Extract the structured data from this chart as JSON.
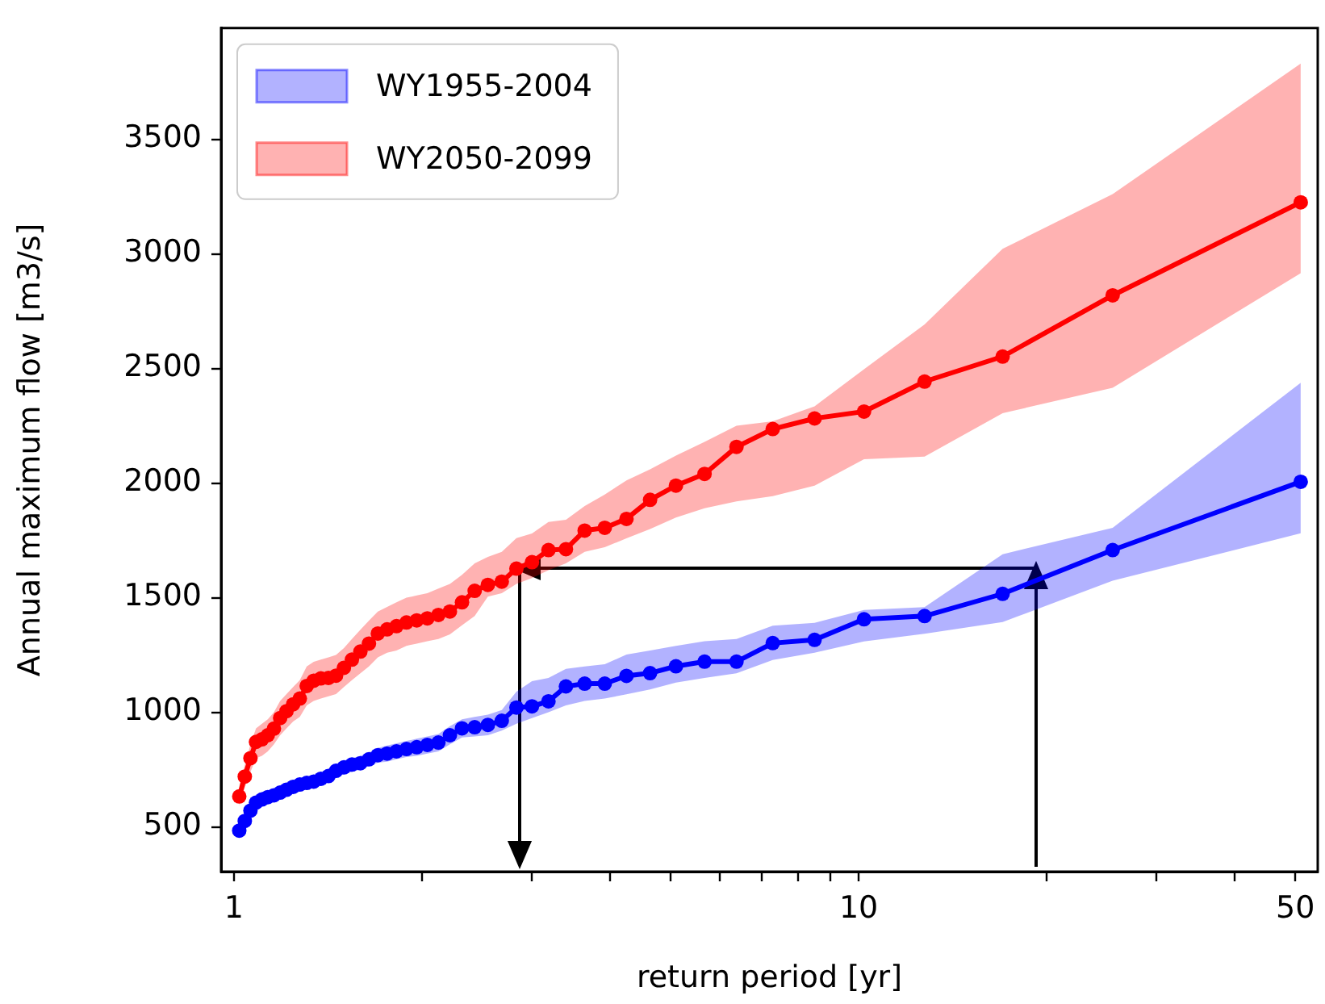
{
  "chart_data": {
    "type": "line",
    "xlabel": "return period [yr]",
    "ylabel": "Annual maximum flow [m3/s]",
    "x": [
      1.02,
      1.041,
      1.063,
      1.085,
      1.109,
      1.133,
      1.159,
      1.186,
      1.214,
      1.244,
      1.275,
      1.308,
      1.342,
      1.378,
      1.417,
      1.457,
      1.5,
      1.545,
      1.594,
      1.645,
      1.7,
      1.759,
      1.821,
      1.889,
      1.962,
      2.04,
      2.125,
      2.217,
      2.318,
      2.429,
      2.55,
      2.684,
      2.833,
      3,
      3.188,
      3.4,
      3.643,
      3.923,
      4.25,
      4.636,
      5.1,
      5.667,
      6.375,
      7.286,
      8.5,
      10.2,
      12.75,
      17,
      25.5,
      51
    ],
    "series": [
      {
        "name": "WY1955-2004",
        "color": "#0000ff",
        "values": [
          484,
          526,
          571,
          606,
          620,
          630,
          638,
          650,
          662,
          675,
          685,
          692,
          698,
          710,
          722,
          745,
          760,
          772,
          778,
          795,
          813,
          820,
          830,
          840,
          848,
          858,
          868,
          900,
          930,
          935,
          945,
          963,
          1021,
          1026,
          1048,
          1113,
          1125,
          1125,
          1159,
          1171,
          1201,
          1221,
          1221,
          1302,
          1316,
          1406,
          1420,
          1517,
          1708,
          2006
        ],
        "lower": [
          470,
          510,
          550,
          585,
          600,
          610,
          620,
          630,
          640,
          650,
          660,
          670,
          675,
          685,
          695,
          715,
          730,
          740,
          750,
          765,
          780,
          785,
          795,
          805,
          810,
          820,
          830,
          860,
          890,
          895,
          900,
          920,
          950,
          975,
          1000,
          1030,
          1050,
          1060,
          1079,
          1100,
          1130,
          1150,
          1170,
          1228,
          1260,
          1309,
          1343,
          1394,
          1574,
          1781
        ],
        "upper": [
          500,
          545,
          590,
          625,
          640,
          650,
          660,
          670,
          685,
          700,
          710,
          715,
          720,
          735,
          750,
          775,
          790,
          800,
          810,
          825,
          845,
          855,
          865,
          875,
          885,
          895,
          905,
          940,
          970,
          980,
          990,
          1010,
          1090,
          1136,
          1150,
          1190,
          1200,
          1210,
          1252,
          1270,
          1290,
          1310,
          1320,
          1378,
          1390,
          1447,
          1459,
          1690,
          1805,
          2438
        ]
      },
      {
        "name": "WY2050-2099",
        "color": "#ff0000",
        "values": [
          633,
          720,
          800,
          871,
          882,
          900,
          929,
          975,
          1005,
          1035,
          1060,
          1115,
          1138,
          1148,
          1150,
          1160,
          1194,
          1230,
          1265,
          1300,
          1344,
          1362,
          1376,
          1392,
          1401,
          1410,
          1425,
          1440,
          1480,
          1530,
          1556,
          1570,
          1627,
          1655,
          1708,
          1712,
          1793,
          1805,
          1844,
          1927,
          1989,
          2040,
          2158,
          2236,
          2282,
          2312,
          2443,
          2552,
          2819,
          3225
        ],
        "lower": [
          590,
          670,
          740,
          800,
          810,
          830,
          860,
          900,
          930,
          960,
          980,
          1030,
          1050,
          1060,
          1070,
          1080,
          1110,
          1140,
          1170,
          1200,
          1240,
          1260,
          1270,
          1290,
          1300,
          1310,
          1320,
          1340,
          1380,
          1420,
          1505,
          1520,
          1560,
          1586,
          1620,
          1650,
          1700,
          1720,
          1759,
          1800,
          1850,
          1890,
          1920,
          1943,
          1989,
          2104,
          2116,
          2305,
          2416,
          2916
        ],
        "upper": [
          680,
          770,
          860,
          930,
          950,
          970,
          1000,
          1050,
          1080,
          1110,
          1140,
          1200,
          1220,
          1230,
          1240,
          1250,
          1280,
          1320,
          1360,
          1400,
          1440,
          1460,
          1480,
          1500,
          1510,
          1520,
          1540,
          1560,
          1600,
          1650,
          1678,
          1700,
          1760,
          1780,
          1830,
          1840,
          1900,
          1950,
          2012,
          2060,
          2120,
          2180,
          2250,
          2270,
          2335,
          2497,
          2692,
          3022,
          3261,
          3830
        ]
      }
    ],
    "log": "x",
    "xlim": [
      0.954,
      54.3
    ],
    "xticks": [
      1,
      {
        "value": 2,
        "label": null
      },
      {
        "value": 3,
        "label": null
      },
      {
        "value": 4,
        "label": null
      },
      {
        "value": 5,
        "label": null
      },
      {
        "value": 6,
        "label": null
      },
      {
        "value": 7,
        "label": null
      },
      {
        "value": 8,
        "label": null
      },
      {
        "value": 9,
        "label": null
      },
      10,
      {
        "value": 20,
        "label": null
      },
      {
        "value": 30,
        "label": null
      },
      {
        "value": 40,
        "label": null
      },
      50
    ],
    "ylim": [
      305,
      3985
    ],
    "yticks": [
      500,
      1000,
      1500,
      2000,
      2500,
      3000,
      3500
    ],
    "grid": false,
    "legend": "top left",
    "marker": "circle",
    "line_style": "solid"
  }
}
